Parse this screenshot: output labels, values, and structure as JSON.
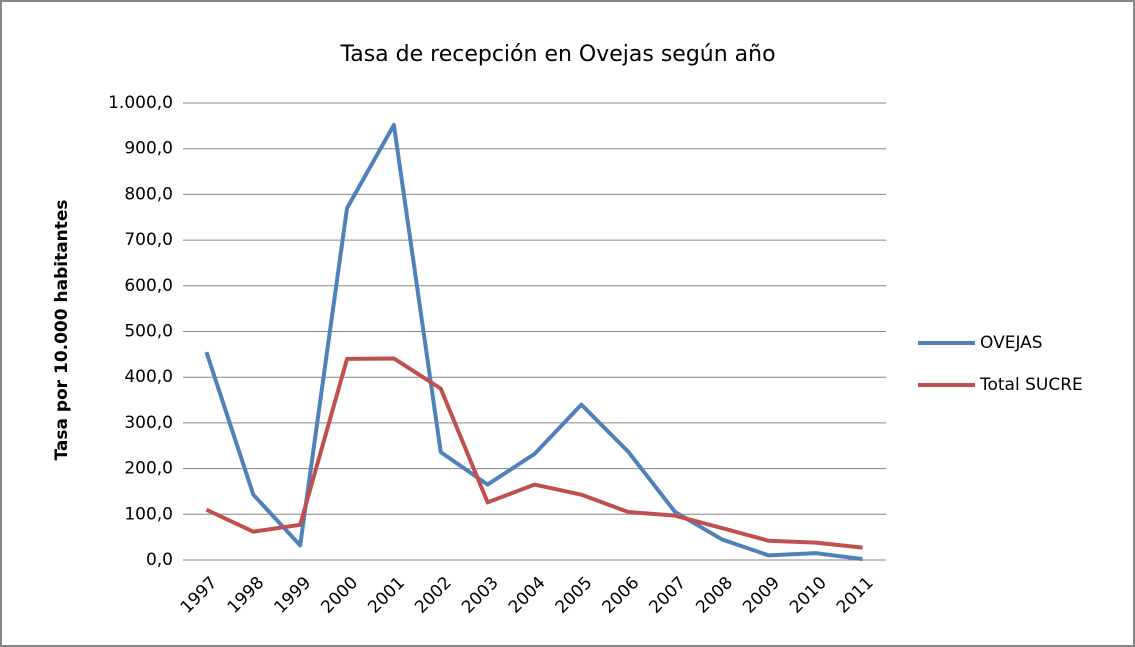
{
  "chart_data": {
    "type": "line",
    "title": "Tasa de recepción en Ovejas según año",
    "y_label": "Tasa por 10.000 habitantes",
    "categories": [
      "1997",
      "1998",
      "1999",
      "2000",
      "2001",
      "2002",
      "2003",
      "2004",
      "2005",
      "2006",
      "2007",
      "2008",
      "2009",
      "2010",
      "2011"
    ],
    "series": [
      {
        "name": "OVEJAS",
        "color": "#4f81bd",
        "values": [
          455,
          143,
          32,
          770,
          952,
          236,
          165,
          232,
          340,
          237,
          105,
          45,
          10,
          15,
          2
        ]
      },
      {
        "name": "Total SUCRE",
        "color": "#c0504d",
        "values": [
          110,
          62,
          77,
          440,
          441,
          375,
          126,
          165,
          143,
          105,
          97,
          70,
          42,
          38,
          27
        ]
      }
    ],
    "ylim": [
      0,
      1000
    ],
    "yticks": [
      {
        "value": 0,
        "label": "0,0"
      },
      {
        "value": 100,
        "label": "100,0"
      },
      {
        "value": 200,
        "label": "200,0"
      },
      {
        "value": 300,
        "label": "300,0"
      },
      {
        "value": 400,
        "label": "400,0"
      },
      {
        "value": 500,
        "label": "500,0"
      },
      {
        "value": 600,
        "label": "600,0"
      },
      {
        "value": 700,
        "label": "700,0"
      },
      {
        "value": 800,
        "label": "800,0"
      },
      {
        "value": 900,
        "label": "900,0"
      },
      {
        "value": 1000,
        "label": "1.000,0"
      }
    ],
    "grid": true,
    "legend": "right"
  }
}
